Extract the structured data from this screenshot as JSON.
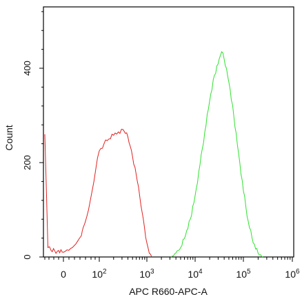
{
  "chart_data": {
    "type": "line",
    "xlabel": "APC R660-APC-A",
    "ylabel": "Count",
    "x_scale": "biexponential",
    "ylim": [
      0,
      530
    ],
    "y_ticks": [
      {
        "label": "0",
        "value": 0
      },
      {
        "label": "200",
        "value": 200
      },
      {
        "label": "400",
        "value": 400
      }
    ],
    "x_tick_labels": [
      {
        "base": "0",
        "exp": ""
      },
      {
        "base": "10",
        "exp": "2"
      },
      {
        "base": "10",
        "exp": "3"
      },
      {
        "base": "10",
        "exp": "4"
      },
      {
        "base": "10",
        "exp": "5"
      },
      {
        "base": "10",
        "exp": "6"
      }
    ],
    "grid": false,
    "series": [
      {
        "color": "#e0201e",
        "points": [
          [
            -0.3,
            260
          ],
          [
            -0.25,
            20
          ],
          [
            -0.2,
            14
          ],
          [
            -0.1,
            12
          ],
          [
            0,
            10
          ],
          [
            0.1,
            12
          ],
          [
            0.2,
            15
          ],
          [
            0.3,
            14
          ],
          [
            0.4,
            18
          ],
          [
            0.5,
            20
          ],
          [
            0.6,
            24
          ],
          [
            0.7,
            28
          ],
          [
            0.8,
            34
          ],
          [
            0.9,
            40
          ],
          [
            1.0,
            45
          ],
          [
            1.05,
            55
          ],
          [
            1.1,
            62
          ],
          [
            1.2,
            72
          ],
          [
            1.3,
            85
          ],
          [
            1.4,
            100
          ],
          [
            1.5,
            120
          ],
          [
            1.6,
            140
          ],
          [
            1.7,
            160
          ],
          [
            1.8,
            185
          ],
          [
            1.9,
            210
          ],
          [
            2.0,
            225
          ],
          [
            2.1,
            240
          ],
          [
            2.2,
            250
          ],
          [
            2.3,
            258
          ],
          [
            2.4,
            265
          ],
          [
            2.5,
            270
          ],
          [
            2.55,
            262
          ],
          [
            2.6,
            255
          ],
          [
            2.65,
            235
          ],
          [
            2.7,
            212
          ],
          [
            2.75,
            190
          ],
          [
            2.8,
            160
          ],
          [
            2.85,
            128
          ],
          [
            2.9,
            95
          ],
          [
            2.95,
            62
          ],
          [
            3.0,
            30
          ],
          [
            3.05,
            8
          ],
          [
            3.1,
            0
          ]
        ]
      },
      {
        "color": "#2ee02e",
        "points": [
          [
            3.5,
            0
          ],
          [
            3.6,
            8
          ],
          [
            3.7,
            20
          ],
          [
            3.8,
            45
          ],
          [
            3.9,
            80
          ],
          [
            4.0,
            130
          ],
          [
            4.1,
            195
          ],
          [
            4.2,
            265
          ],
          [
            4.3,
            330
          ],
          [
            4.4,
            385
          ],
          [
            4.5,
            420
          ],
          [
            4.55,
            435
          ],
          [
            4.6,
            420
          ],
          [
            4.7,
            370
          ],
          [
            4.8,
            300
          ],
          [
            4.9,
            220
          ],
          [
            5.0,
            140
          ],
          [
            5.1,
            75
          ],
          [
            5.2,
            30
          ],
          [
            5.3,
            8
          ],
          [
            5.4,
            0
          ]
        ]
      }
    ]
  }
}
